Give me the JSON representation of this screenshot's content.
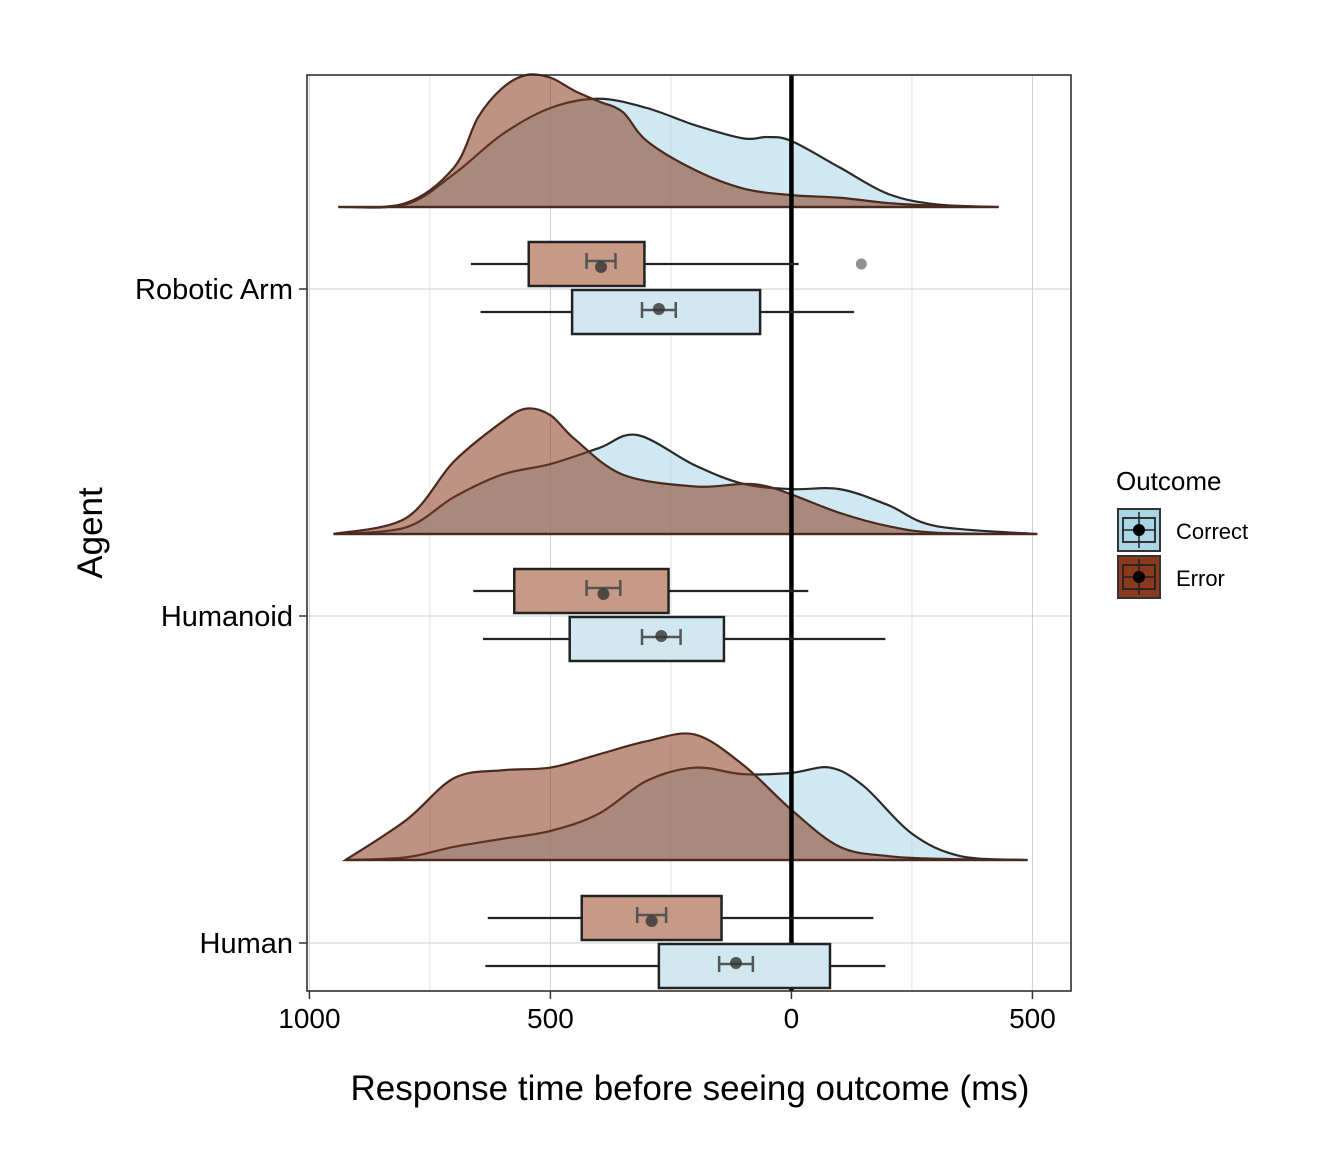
{
  "chart_data": {
    "type": "raincloud",
    "orientation": "horizontal",
    "title": "",
    "xlabel": "Response time before seeing outcome (ms)",
    "ylabel": "Agent",
    "xlim": [
      -1005,
      580
    ],
    "x_ticks": [
      {
        "value": -1000,
        "label": "1000"
      },
      {
        "value": -500,
        "label": "500"
      },
      {
        "value": 0,
        "label": "0"
      },
      {
        "value": 500,
        "label": "500"
      }
    ],
    "reference_line_x": 0,
    "grid": true,
    "categories": [
      "Robotic Arm",
      "Humanoid",
      "Human"
    ],
    "legend": {
      "title": "Outcome",
      "position": "right",
      "items": [
        {
          "name": "Correct",
          "color": "#a9d5e5"
        },
        {
          "name": "Error",
          "color": "#8b3a1e"
        }
      ]
    },
    "series": [
      {
        "name": "Correct",
        "color": "#a9d5e5",
        "groups": [
          {
            "category": "Robotic Arm",
            "box": {
              "whisker_low": -645,
              "q1": -455,
              "median": -300,
              "q3": -65,
              "whisker_high": 130
            },
            "mean": -275,
            "mean_ci": [
              -310,
              -240
            ],
            "outliers": [],
            "density": {
              "x": [
                -940,
                -800,
                -700,
                -600,
                -500,
                -400,
                -300,
                -200,
                -100,
                -50,
                0,
                100,
                200,
                300,
                430
              ],
              "y": [
                0,
                0.02,
                0.25,
                0.55,
                0.75,
                0.82,
                0.75,
                0.62,
                0.52,
                0.53,
                0.5,
                0.3,
                0.1,
                0.02,
                0
              ]
            }
          },
          {
            "category": "Humanoid",
            "box": {
              "whisker_low": -640,
              "q1": -460,
              "median": -300,
              "q3": -140,
              "whisker_high": 195
            },
            "mean": -270,
            "mean_ci": [
              -310,
              -230
            ],
            "outliers": [],
            "density": {
              "x": [
                -950,
                -800,
                -700,
                -600,
                -500,
                -400,
                -320,
                -200,
                -100,
                0,
                100,
                200,
                300,
                510
              ],
              "y": [
                0,
                0.05,
                0.28,
                0.45,
                0.53,
                0.65,
                0.75,
                0.52,
                0.38,
                0.34,
                0.34,
                0.22,
                0.06,
                0
              ]
            }
          },
          {
            "category": "Human",
            "box": {
              "whisker_low": -635,
              "q1": -275,
              "median": -120,
              "q3": 80,
              "whisker_high": 195
            },
            "mean": -115,
            "mean_ci": [
              -150,
              -80
            ],
            "outliers": [],
            "density": {
              "x": [
                -925,
                -800,
                -700,
                -600,
                -500,
                -400,
                -300,
                -200,
                -100,
                0,
                80,
                150,
                250,
                350,
                490
              ],
              "y": [
                0,
                0.02,
                0.1,
                0.16,
                0.22,
                0.35,
                0.6,
                0.7,
                0.65,
                0.66,
                0.7,
                0.56,
                0.2,
                0.03,
                0
              ]
            }
          }
        ]
      },
      {
        "name": "Error",
        "color": "#8b3a1e",
        "groups": [
          {
            "category": "Robotic Arm",
            "box": {
              "whisker_low": -665,
              "q1": -545,
              "median": -395,
              "q3": -305,
              "whisker_high": 15
            },
            "mean": -395,
            "mean_ci": [
              -425,
              -365
            ],
            "outliers": [
              145
            ],
            "density": {
              "x": [
                -940,
                -800,
                -700,
                -650,
                -600,
                -550,
                -500,
                -450,
                -400,
                -350,
                -300,
                -200,
                -100,
                0,
                100,
                200,
                300,
                430
              ],
              "y": [
                0,
                0.03,
                0.3,
                0.68,
                0.9,
                1.0,
                0.98,
                0.88,
                0.8,
                0.72,
                0.5,
                0.28,
                0.14,
                0.09,
                0.07,
                0.03,
                0.01,
                0
              ]
            }
          },
          {
            "category": "Humanoid",
            "box": {
              "whisker_low": -660,
              "q1": -575,
              "median": -390,
              "q3": -255,
              "whisker_high": 35
            },
            "mean": -390,
            "mean_ci": [
              -425,
              -355
            ],
            "outliers": [],
            "density": {
              "x": [
                -950,
                -800,
                -700,
                -600,
                -550,
                -500,
                -450,
                -350,
                -200,
                -100,
                -50,
                0,
                100,
                200,
                300,
                510
              ],
              "y": [
                0,
                0.12,
                0.55,
                0.85,
                0.95,
                0.9,
                0.72,
                0.45,
                0.36,
                0.38,
                0.36,
                0.3,
                0.16,
                0.06,
                0.01,
                0
              ]
            }
          },
          {
            "category": "Human",
            "box": {
              "whisker_low": -630,
              "q1": -435,
              "median": -290,
              "q3": -145,
              "whisker_high": 170
            },
            "mean": -290,
            "mean_ci": [
              -320,
              -260
            ],
            "outliers": [],
            "density": {
              "x": [
                -925,
                -800,
                -700,
                -600,
                -500,
                -400,
                -300,
                -200,
                -100,
                0,
                100,
                200,
                300,
                490
              ],
              "y": [
                0,
                0.3,
                0.62,
                0.68,
                0.7,
                0.8,
                0.9,
                0.95,
                0.72,
                0.38,
                0.1,
                0.03,
                0.01,
                0
              ]
            }
          }
        ]
      }
    ]
  }
}
